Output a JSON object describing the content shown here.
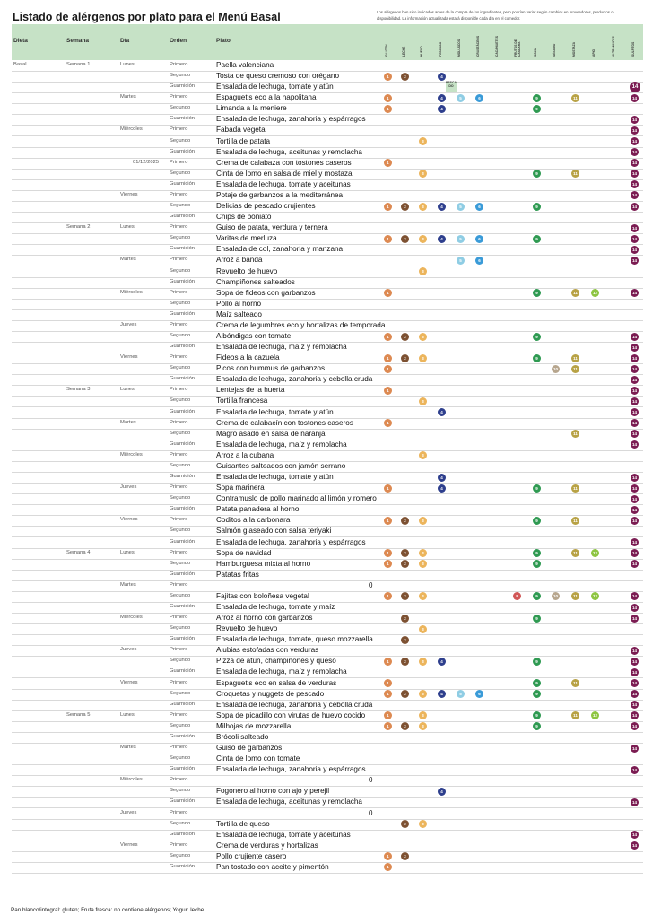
{
  "title": "Listado de alérgenos por plato para el Menú Basal",
  "note": "Los alérgenos han sido indicados antes de la compra de los ingredientes, pero podrían variar según cambios en proveedores, productos o disponibilidad. La información actualizada estará disponible cada día en el comedor.",
  "columns": {
    "dieta": "Dieta",
    "semana": "Semana",
    "dia": "Día",
    "orden": "Orden",
    "plato": "Plato"
  },
  "allergens": [
    {
      "n": 1,
      "label": "GLUTEN",
      "color": "#dd8a52"
    },
    {
      "n": 2,
      "label": "LECHE",
      "color": "#7d5132"
    },
    {
      "n": 3,
      "label": "HUEVO",
      "color": "#ecb55c"
    },
    {
      "n": 4,
      "label": "PESCADO",
      "color": "#2e3f8d"
    },
    {
      "n": 5,
      "label": "MOLUSCOS",
      "color": "#8fcde4"
    },
    {
      "n": 6,
      "label": "CRUSTÁCEOS",
      "color": "#3a9bd8"
    },
    {
      "n": 7,
      "label": "CACAHUETES",
      "color": "#b98d5f"
    },
    {
      "n": 8,
      "label": "FRUTOS DE CÁSCARA",
      "color": "#d15757"
    },
    {
      "n": 9,
      "label": "SOJA",
      "color": "#2f9a52"
    },
    {
      "n": 10,
      "label": "SÉSAMO",
      "color": "#b7a68e"
    },
    {
      "n": 11,
      "label": "MOSTAZA",
      "color": "#b8a245"
    },
    {
      "n": 12,
      "label": "APIO",
      "color": "#8ec542"
    },
    {
      "n": 13,
      "label": "ALTRAMUCES",
      "color": "#9f7fb8"
    },
    {
      "n": 14,
      "label": "SULFITOS",
      "color": "#7b1c52"
    }
  ],
  "pescado_tag": "PESCA DO",
  "rows": [
    {
      "dieta": "Basal",
      "semana": "Semana 1",
      "dia": "Lunes",
      "orden": "Primero",
      "plato": "Paella valenciana",
      "al": []
    },
    {
      "dieta": "",
      "semana": "",
      "dia": "",
      "orden": "Segundo",
      "plato": "Tosta de queso cremoso con orégano",
      "al": [
        1,
        2,
        4
      ]
    },
    {
      "dieta": "",
      "semana": "",
      "dia": "",
      "orden": "Guarnición",
      "plato": "Ensalada de lechuga, tomate y atún",
      "al": [
        14
      ],
      "tag": true
    },
    {
      "dieta": "",
      "semana": "",
      "dia": "Martes",
      "orden": "Primero",
      "plato": "Espaguetis eco a la napolitana",
      "al": [
        1,
        4,
        5,
        6,
        9,
        11,
        14
      ]
    },
    {
      "dieta": "",
      "semana": "",
      "dia": "",
      "orden": "Segundo",
      "plato": "Limanda a la meniere",
      "al": [
        1,
        4,
        9
      ]
    },
    {
      "dieta": "",
      "semana": "",
      "dia": "",
      "orden": "Guarnición",
      "plato": "Ensalada de lechuga, zanahoria y espárragos",
      "al": [
        14
      ]
    },
    {
      "dieta": "",
      "semana": "",
      "dia": "Miércoles",
      "orden": "Primero",
      "plato": "Fabada vegetal",
      "al": [
        14
      ]
    },
    {
      "dieta": "",
      "semana": "",
      "dia": "",
      "orden": "Segundo",
      "plato": "Tortilla de patata",
      "al": [
        3,
        14
      ]
    },
    {
      "dieta": "",
      "semana": "",
      "dia": "",
      "orden": "Guarnición",
      "plato": "Ensalada de lechuga, aceitunas y remolacha",
      "al": [
        14
      ]
    },
    {
      "dieta": "",
      "semana": "",
      "dia": "01/12/2025",
      "orden": "Primero",
      "plato": "Crema de calabaza con tostones caseros",
      "al": [
        1,
        14
      ]
    },
    {
      "dieta": "",
      "semana": "",
      "dia": "",
      "orden": "Segundo",
      "plato": "Cinta de lomo en salsa de miel y mostaza",
      "al": [
        3,
        9,
        11,
        14
      ]
    },
    {
      "dieta": "",
      "semana": "",
      "dia": "",
      "orden": "Guarnición",
      "plato": "Ensalada de lechuga, tomate y aceitunas",
      "al": [
        14
      ]
    },
    {
      "dieta": "",
      "semana": "",
      "dia": "Viernes",
      "orden": "Primero",
      "plato": "Potaje de garbanzos a la mediterránea",
      "al": [
        14
      ]
    },
    {
      "dieta": "",
      "semana": "",
      "dia": "",
      "orden": "Segundo",
      "plato": "Delicias de pescado crujientes",
      "al": [
        1,
        2,
        3,
        4,
        5,
        6,
        9,
        14
      ]
    },
    {
      "dieta": "",
      "semana": "",
      "dia": "",
      "orden": "Guarnición",
      "plato": "Chips de boniato",
      "al": []
    },
    {
      "dieta": "",
      "semana": "Semana 2",
      "dia": "Lunes",
      "orden": "Primero",
      "plato": "Guiso de patata, verdura y ternera",
      "al": [
        14
      ]
    },
    {
      "dieta": "",
      "semana": "",
      "dia": "",
      "orden": "Segundo",
      "plato": "Varitas de merluza",
      "al": [
        1,
        2,
        3,
        4,
        5,
        6,
        9,
        14
      ]
    },
    {
      "dieta": "",
      "semana": "",
      "dia": "",
      "orden": "Guarnición",
      "plato": "Ensalada de col, zanahoria y manzana",
      "al": [
        14
      ]
    },
    {
      "dieta": "",
      "semana": "",
      "dia": "Martes",
      "orden": "Primero",
      "plato": "Arroz a banda",
      "al": [
        5,
        6,
        14
      ]
    },
    {
      "dieta": "",
      "semana": "",
      "dia": "",
      "orden": "Segundo",
      "plato": "Revuelto de huevo",
      "al": [
        3
      ]
    },
    {
      "dieta": "",
      "semana": "",
      "dia": "",
      "orden": "Guarnición",
      "plato": "Champiñones salteados",
      "al": []
    },
    {
      "dieta": "",
      "semana": "",
      "dia": "Miércoles",
      "orden": "Primero",
      "plato": "Sopa de fideos con garbanzos",
      "al": [
        1,
        9,
        11,
        12,
        14
      ]
    },
    {
      "dieta": "",
      "semana": "",
      "dia": "",
      "orden": "Segundo",
      "plato": "Pollo al horno",
      "al": []
    },
    {
      "dieta": "",
      "semana": "",
      "dia": "",
      "orden": "Guarnición",
      "plato": "Maíz salteado",
      "al": []
    },
    {
      "dieta": "",
      "semana": "",
      "dia": "Jueves",
      "orden": "Primero",
      "plato": "Crema de legumbres eco y hortalizas de temporada",
      "al": []
    },
    {
      "dieta": "",
      "semana": "",
      "dia": "",
      "orden": "Segundo",
      "plato": "Albóndigas con tomate",
      "al": [
        1,
        2,
        3,
        9,
        14
      ]
    },
    {
      "dieta": "",
      "semana": "",
      "dia": "",
      "orden": "Guarnición",
      "plato": "Ensalada de lechuga, maíz y remolacha",
      "al": [
        14
      ]
    },
    {
      "dieta": "",
      "semana": "",
      "dia": "Viernes",
      "orden": "Primero",
      "plato": "Fideos a la cazuela",
      "al": [
        1,
        2,
        3,
        9,
        11,
        14
      ]
    },
    {
      "dieta": "",
      "semana": "",
      "dia": "",
      "orden": "Segundo",
      "plato": "Picos con hummus de garbanzos",
      "al": [
        1,
        10,
        11,
        14
      ]
    },
    {
      "dieta": "",
      "semana": "",
      "dia": "",
      "orden": "Guarnición",
      "plato": "Ensalada de lechuga, zanahoria y cebolla cruda",
      "al": [
        14
      ]
    },
    {
      "dieta": "",
      "semana": "Semana 3",
      "dia": "Lunes",
      "orden": "Primero",
      "plato": "Lentejas de la huerta",
      "al": [
        1,
        14
      ]
    },
    {
      "dieta": "",
      "semana": "",
      "dia": "",
      "orden": "Segundo",
      "plato": "Tortilla francesa",
      "al": [
        3,
        14
      ]
    },
    {
      "dieta": "",
      "semana": "",
      "dia": "",
      "orden": "Guarnición",
      "plato": "Ensalada de lechuga, tomate y atún",
      "al": [
        4,
        14
      ]
    },
    {
      "dieta": "",
      "semana": "",
      "dia": "Martes",
      "orden": "Primero",
      "plato": "Crema de calabacín con tostones caseros",
      "al": [
        1,
        14
      ]
    },
    {
      "dieta": "",
      "semana": "",
      "dia": "",
      "orden": "Segundo",
      "plato": "Magro asado en salsa de naranja",
      "al": [
        11,
        14
      ]
    },
    {
      "dieta": "",
      "semana": "",
      "dia": "",
      "orden": "Guarnición",
      "plato": "Ensalada de lechuga, maíz y remolacha",
      "al": [
        14
      ]
    },
    {
      "dieta": "",
      "semana": "",
      "dia": "Miércoles",
      "orden": "Primero",
      "plato": "Arroz a la cubana",
      "al": [
        3
      ]
    },
    {
      "dieta": "",
      "semana": "",
      "dia": "",
      "orden": "Segundo",
      "plato": "Guisantes salteados con jamón serrano",
      "al": []
    },
    {
      "dieta": "",
      "semana": "",
      "dia": "",
      "orden": "Guarnición",
      "plato": "Ensalada de lechuga, tomate y atún",
      "al": [
        4,
        14
      ]
    },
    {
      "dieta": "",
      "semana": "",
      "dia": "Jueves",
      "orden": "Primero",
      "plato": "Sopa marinera",
      "al": [
        1,
        4,
        9,
        11,
        14
      ]
    },
    {
      "dieta": "",
      "semana": "",
      "dia": "",
      "orden": "Segundo",
      "plato": "Contramuslo de pollo marinado al limón y romero",
      "al": [
        14
      ]
    },
    {
      "dieta": "",
      "semana": "",
      "dia": "",
      "orden": "Guarnición",
      "plato": "Patata panadera al horno",
      "al": [
        14
      ]
    },
    {
      "dieta": "",
      "semana": "",
      "dia": "Viernes",
      "orden": "Primero",
      "plato": "Coditos a la carbonara",
      "al": [
        1,
        2,
        3,
        9,
        11,
        14
      ]
    },
    {
      "dieta": "",
      "semana": "",
      "dia": "",
      "orden": "Segundo",
      "plato": "Salmón glaseado con salsa teriyaki",
      "al": []
    },
    {
      "dieta": "",
      "semana": "",
      "dia": "",
      "orden": "Guarnición",
      "plato": "Ensalada de lechuga, zanahoria y espárragos",
      "al": [
        14
      ]
    },
    {
      "dieta": "",
      "semana": "Semana 4",
      "dia": "Lunes",
      "orden": "Primero",
      "plato": "Sopa de navidad",
      "al": [
        1,
        2,
        3,
        9,
        11,
        12,
        14
      ]
    },
    {
      "dieta": "",
      "semana": "",
      "dia": "",
      "orden": "Segundo",
      "plato": "Hamburguesa mixta al horno",
      "al": [
        1,
        2,
        3,
        9,
        14
      ]
    },
    {
      "dieta": "",
      "semana": "",
      "dia": "",
      "orden": "Guarnición",
      "plato": "Patatas fritas",
      "al": []
    },
    {
      "dieta": "",
      "semana": "",
      "dia": "Martes",
      "orden": "Primero",
      "plato": "",
      "zero": "0",
      "al": []
    },
    {
      "dieta": "",
      "semana": "",
      "dia": "",
      "orden": "Segundo",
      "plato": "Fajitas con boloñesa vegetal",
      "al": [
        1,
        2,
        3,
        8,
        9,
        10,
        11,
        12,
        14
      ]
    },
    {
      "dieta": "",
      "semana": "",
      "dia": "",
      "orden": "Guarnición",
      "plato": "Ensalada de lechuga, tomate y maíz",
      "al": [
        14
      ]
    },
    {
      "dieta": "",
      "semana": "",
      "dia": "Miércoles",
      "orden": "Primero",
      "plato": "Arroz al horno con garbanzos",
      "al": [
        2,
        9,
        14
      ]
    },
    {
      "dieta": "",
      "semana": "",
      "dia": "",
      "orden": "Segundo",
      "plato": "Revuelto de huevo",
      "al": [
        3
      ]
    },
    {
      "dieta": "",
      "semana": "",
      "dia": "",
      "orden": "Guarnición",
      "plato": "Ensalada de lechuga, tomate, queso mozzarella",
      "al": [
        2
      ]
    },
    {
      "dieta": "",
      "semana": "",
      "dia": "Jueves",
      "orden": "Primero",
      "plato": "Alubias estofadas con verduras",
      "al": [
        14
      ]
    },
    {
      "dieta": "",
      "semana": "",
      "dia": "",
      "orden": "Segundo",
      "plato": "Pizza de atún, champiñones y queso",
      "al": [
        1,
        2,
        3,
        4,
        9,
        14
      ]
    },
    {
      "dieta": "",
      "semana": "",
      "dia": "",
      "orden": "Guarnición",
      "plato": "Ensalada de lechuga, maíz y remolacha",
      "al": [
        14
      ]
    },
    {
      "dieta": "",
      "semana": "",
      "dia": "Viernes",
      "orden": "Primero",
      "plato": "Espaguetis eco en salsa de verduras",
      "al": [
        1,
        9,
        11,
        14
      ]
    },
    {
      "dieta": "",
      "semana": "",
      "dia": "",
      "orden": "Segundo",
      "plato": "Croquetas y nuggets de pescado",
      "al": [
        1,
        2,
        3,
        4,
        5,
        6,
        9,
        14
      ]
    },
    {
      "dieta": "",
      "semana": "",
      "dia": "",
      "orden": "Guarnición",
      "plato": "Ensalada de lechuga, zanahoria y cebolla cruda",
      "al": [
        14
      ]
    },
    {
      "dieta": "",
      "semana": "Semana 5",
      "dia": "Lunes",
      "orden": "Primero",
      "plato": "Sopa de picadillo con virutas de huevo cocido",
      "al": [
        1,
        3,
        9,
        11,
        12,
        14
      ]
    },
    {
      "dieta": "",
      "semana": "",
      "dia": "",
      "orden": "Segundo",
      "plato": "Milhojas de mozzarella",
      "al": [
        1,
        2,
        3,
        9,
        14
      ]
    },
    {
      "dieta": "",
      "semana": "",
      "dia": "",
      "orden": "Guarnición",
      "plato": "Brócoli salteado",
      "al": []
    },
    {
      "dieta": "",
      "semana": "",
      "dia": "Martes",
      "orden": "Primero",
      "plato": "Guiso de garbanzos",
      "al": [
        14
      ]
    },
    {
      "dieta": "",
      "semana": "",
      "dia": "",
      "orden": "Segundo",
      "plato": "Cinta de lomo con tomate",
      "al": []
    },
    {
      "dieta": "",
      "semana": "",
      "dia": "",
      "orden": "Guarnición",
      "plato": "Ensalada de lechuga, zanahoria y espárragos",
      "al": [
        14
      ]
    },
    {
      "dieta": "",
      "semana": "",
      "dia": "Miércoles",
      "orden": "Primero",
      "plato": "",
      "zero": "0",
      "al": []
    },
    {
      "dieta": "",
      "semana": "",
      "dia": "",
      "orden": "Segundo",
      "plato": "Fogonero al horno con ajo y perejil",
      "al": [
        4
      ]
    },
    {
      "dieta": "",
      "semana": "",
      "dia": "",
      "orden": "Guarnición",
      "plato": "Ensalada de lechuga, aceitunas y remolacha",
      "al": [
        14
      ]
    },
    {
      "dieta": "",
      "semana": "",
      "dia": "Jueves",
      "orden": "Primero",
      "plato": "",
      "zero": "0",
      "al": []
    },
    {
      "dieta": "",
      "semana": "",
      "dia": "",
      "orden": "Segundo",
      "plato": "Tortilla de queso",
      "al": [
        2,
        3
      ]
    },
    {
      "dieta": "",
      "semana": "",
      "dia": "",
      "orden": "Guarnición",
      "plato": "Ensalada de lechuga, tomate y aceitunas",
      "al": [
        14
      ]
    },
    {
      "dieta": "",
      "semana": "",
      "dia": "Viernes",
      "orden": "Primero",
      "plato": "Crema de verduras y hortalizas",
      "al": [
        14
      ]
    },
    {
      "dieta": "",
      "semana": "",
      "dia": "",
      "orden": "Segundo",
      "plato": "Pollo crujiente casero",
      "al": [
        1,
        2
      ]
    },
    {
      "dieta": "",
      "semana": "",
      "dia": "",
      "orden": "Guarnición",
      "plato": "Pan tostado con aceite y pimentón",
      "al": [
        1
      ]
    }
  ],
  "footer": "Pan blanco/integral: gluten; Fruta fresca: no contiene alérgenos; Yogur: leche."
}
